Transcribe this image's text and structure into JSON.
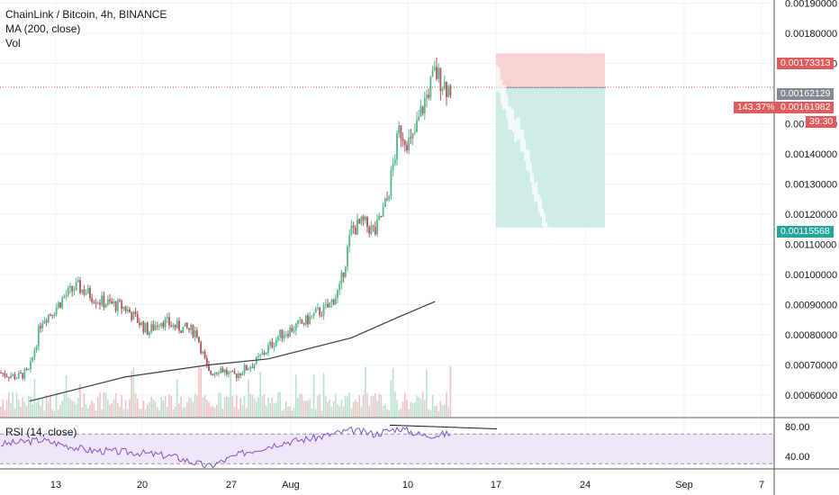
{
  "header": {
    "title": "ChainLink / Bitcoin, 4h, BINANCE",
    "ma_label": "MA (200, close)",
    "vol_label": "Vol",
    "rsi_label": "RSI (14, close)"
  },
  "price_axis": {
    "ticks": [
      "0.00190000",
      "0.00180000",
      "0.00170000",
      "0.00150000",
      "0.00140000",
      "0.00130000",
      "0.00120000",
      "0.00110000",
      "0.00100000",
      "0.00090000",
      "0.00080000",
      "0.00070000",
      "0.00060000"
    ],
    "tick_values": [
      0.0019,
      0.0018,
      0.0017,
      0.0015,
      0.0014,
      0.0013,
      0.0012,
      0.0011,
      0.001,
      0.0009,
      0.0008,
      0.0007,
      0.0006
    ]
  },
  "rsi_axis": {
    "ticks": [
      "80.00",
      "40.00"
    ],
    "tick_values": [
      80,
      40
    ]
  },
  "time_axis": {
    "labels": [
      "13",
      "20",
      "27",
      "Aug",
      "10",
      "17",
      "24",
      "Sep",
      "7"
    ]
  },
  "tags": {
    "stop": "0.00173313",
    "current": "0.00162129",
    "entry": "0.00161982",
    "target": "0.00115568",
    "percent": "143.37%",
    "countdown": "39:30"
  },
  "colors": {
    "up": "#26a69a",
    "up_candle": "#53b987",
    "down": "#b5525b",
    "stop_zone": "#f9d3d3",
    "target_zone": "#cdece8",
    "rsi_band": "#f0e6fa",
    "ma": "#3d3d3d",
    "tag_red": "#e05c5c",
    "tag_green": "#26a69a",
    "tag_gray": "#868993"
  },
  "chart_data": {
    "type": "candlestick",
    "symbol": "ChainLink / Bitcoin",
    "interval": "4h",
    "exchange": "BINANCE",
    "price_range": [
      0.00054,
      0.00197
    ],
    "close_series": {
      "x": [
        "Jul 9",
        "Jul 11",
        "Jul 12",
        "Jul 13",
        "Jul 14",
        "Jul 15",
        "Jul 16",
        "Jul 18",
        "Jul 20",
        "Jul 22",
        "Jul 23",
        "Jul 24",
        "Jul 26",
        "Jul 27",
        "Jul 28",
        "Jul 29",
        "Jul 31",
        "Aug 2",
        "Aug 4",
        "Aug 5",
        "Aug 6",
        "Aug 7",
        "Aug 8",
        "Aug 9",
        "Aug 10",
        "Aug 11",
        "Aug 12",
        "Aug 13",
        "Aug 14",
        "Aug 15",
        "Aug 16"
      ],
      "values": [
        0.00068,
        0.00066,
        0.00068,
        0.00085,
        0.00088,
        0.00093,
        0.00096,
        0.00091,
        0.00089,
        0.00081,
        0.00085,
        0.00083,
        0.00081,
        0.00067,
        0.00069,
        0.00066,
        0.00071,
        0.0008,
        0.00084,
        0.00087,
        0.00089,
        0.00095,
        0.00115,
        0.00117,
        0.00114,
        0.00125,
        0.00148,
        0.00143,
        0.00156,
        0.00167,
        0.00162
      ]
    },
    "ma_200": {
      "x": [
        "Jul 12",
        "Jul 20",
        "Jul 27",
        "Aug 1",
        "Aug 8",
        "Aug 12",
        "Aug 15"
      ],
      "values": [
        0.00058,
        0.00066,
        0.0007,
        0.00072,
        0.00079,
        0.00086,
        0.00091
      ]
    },
    "position": {
      "stop": 0.00173313,
      "entry": 0.00161982,
      "target": 0.00115568,
      "current": 0.00162129,
      "percent": "143.37%"
    },
    "rsi": {
      "x": [
        "Jul 9",
        "Jul 13",
        "Jul 17",
        "Jul 21",
        "Jul 24",
        "Jul 27",
        "Jul 30",
        "Aug 2",
        "Aug 5",
        "Aug 8",
        "Aug 10",
        "Aug 12",
        "Aug 14",
        "Aug 16"
      ],
      "values": [
        55,
        62,
        48,
        45,
        40,
        26,
        45,
        58,
        65,
        75,
        70,
        78,
        68,
        70
      ],
      "ylim": [
        20,
        90
      ]
    },
    "grid": true
  }
}
